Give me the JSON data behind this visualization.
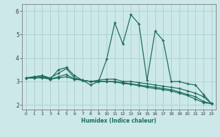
{
  "xlabel": "Humidex (Indice chaleur)",
  "ylabel": "",
  "xlim": [
    -0.5,
    23.5
  ],
  "ylim": [
    1.8,
    6.3
  ],
  "yticks": [
    2,
    3,
    4,
    5,
    6
  ],
  "xticks": [
    0,
    1,
    2,
    3,
    4,
    5,
    6,
    7,
    8,
    9,
    10,
    11,
    12,
    13,
    14,
    15,
    16,
    17,
    18,
    19,
    20,
    21,
    22,
    23
  ],
  "bg_color": "#cce8e8",
  "grid_color": "#aacece",
  "line_color": "#1a6b5a",
  "lines": [
    {
      "x": [
        0,
        1,
        2,
        3,
        4,
        5,
        6,
        7,
        8,
        9,
        10,
        11,
        12,
        13,
        14,
        15,
        16,
        17,
        18,
        19,
        20,
        21,
        22,
        23
      ],
      "y": [
        3.15,
        3.2,
        3.25,
        3.1,
        3.5,
        3.6,
        3.25,
        3.05,
        2.85,
        3.0,
        3.95,
        5.5,
        4.6,
        5.85,
        5.45,
        3.05,
        5.15,
        4.75,
        3.0,
        3.0,
        2.9,
        2.85,
        2.45,
        2.05
      ]
    },
    {
      "x": [
        0,
        1,
        2,
        3,
        4,
        5,
        6,
        7,
        8,
        9,
        10,
        11,
        12,
        13,
        14,
        15,
        16,
        17,
        18,
        19,
        20,
        21,
        22,
        23
      ],
      "y": [
        3.15,
        3.2,
        3.25,
        3.15,
        3.35,
        3.55,
        3.15,
        3.05,
        3.0,
        3.05,
        3.1,
        3.1,
        3.0,
        3.0,
        2.95,
        2.9,
        2.85,
        2.8,
        2.75,
        2.7,
        2.6,
        2.5,
        2.35,
        2.05
      ]
    },
    {
      "x": [
        0,
        1,
        2,
        3,
        4,
        5,
        6,
        7,
        8,
        9,
        10,
        11,
        12,
        13,
        14,
        15,
        16,
        17,
        18,
        19,
        20,
        21,
        22,
        23
      ],
      "y": [
        3.15,
        3.15,
        3.15,
        3.1,
        3.15,
        3.2,
        3.1,
        3.05,
        3.0,
        3.0,
        3.0,
        3.0,
        2.95,
        2.9,
        2.85,
        2.8,
        2.75,
        2.7,
        2.65,
        2.55,
        2.45,
        2.35,
        2.15,
        2.05
      ]
    },
    {
      "x": [
        0,
        1,
        2,
        3,
        4,
        5,
        6,
        7,
        8,
        9,
        10,
        11,
        12,
        13,
        14,
        15,
        16,
        17,
        18,
        19,
        20,
        21,
        22,
        23
      ],
      "y": [
        3.15,
        3.15,
        3.2,
        3.1,
        3.2,
        3.3,
        3.1,
        3.05,
        3.0,
        3.0,
        3.0,
        2.98,
        2.92,
        2.88,
        2.82,
        2.75,
        2.7,
        2.65,
        2.6,
        2.5,
        2.4,
        2.25,
        2.1,
        2.05
      ]
    }
  ]
}
